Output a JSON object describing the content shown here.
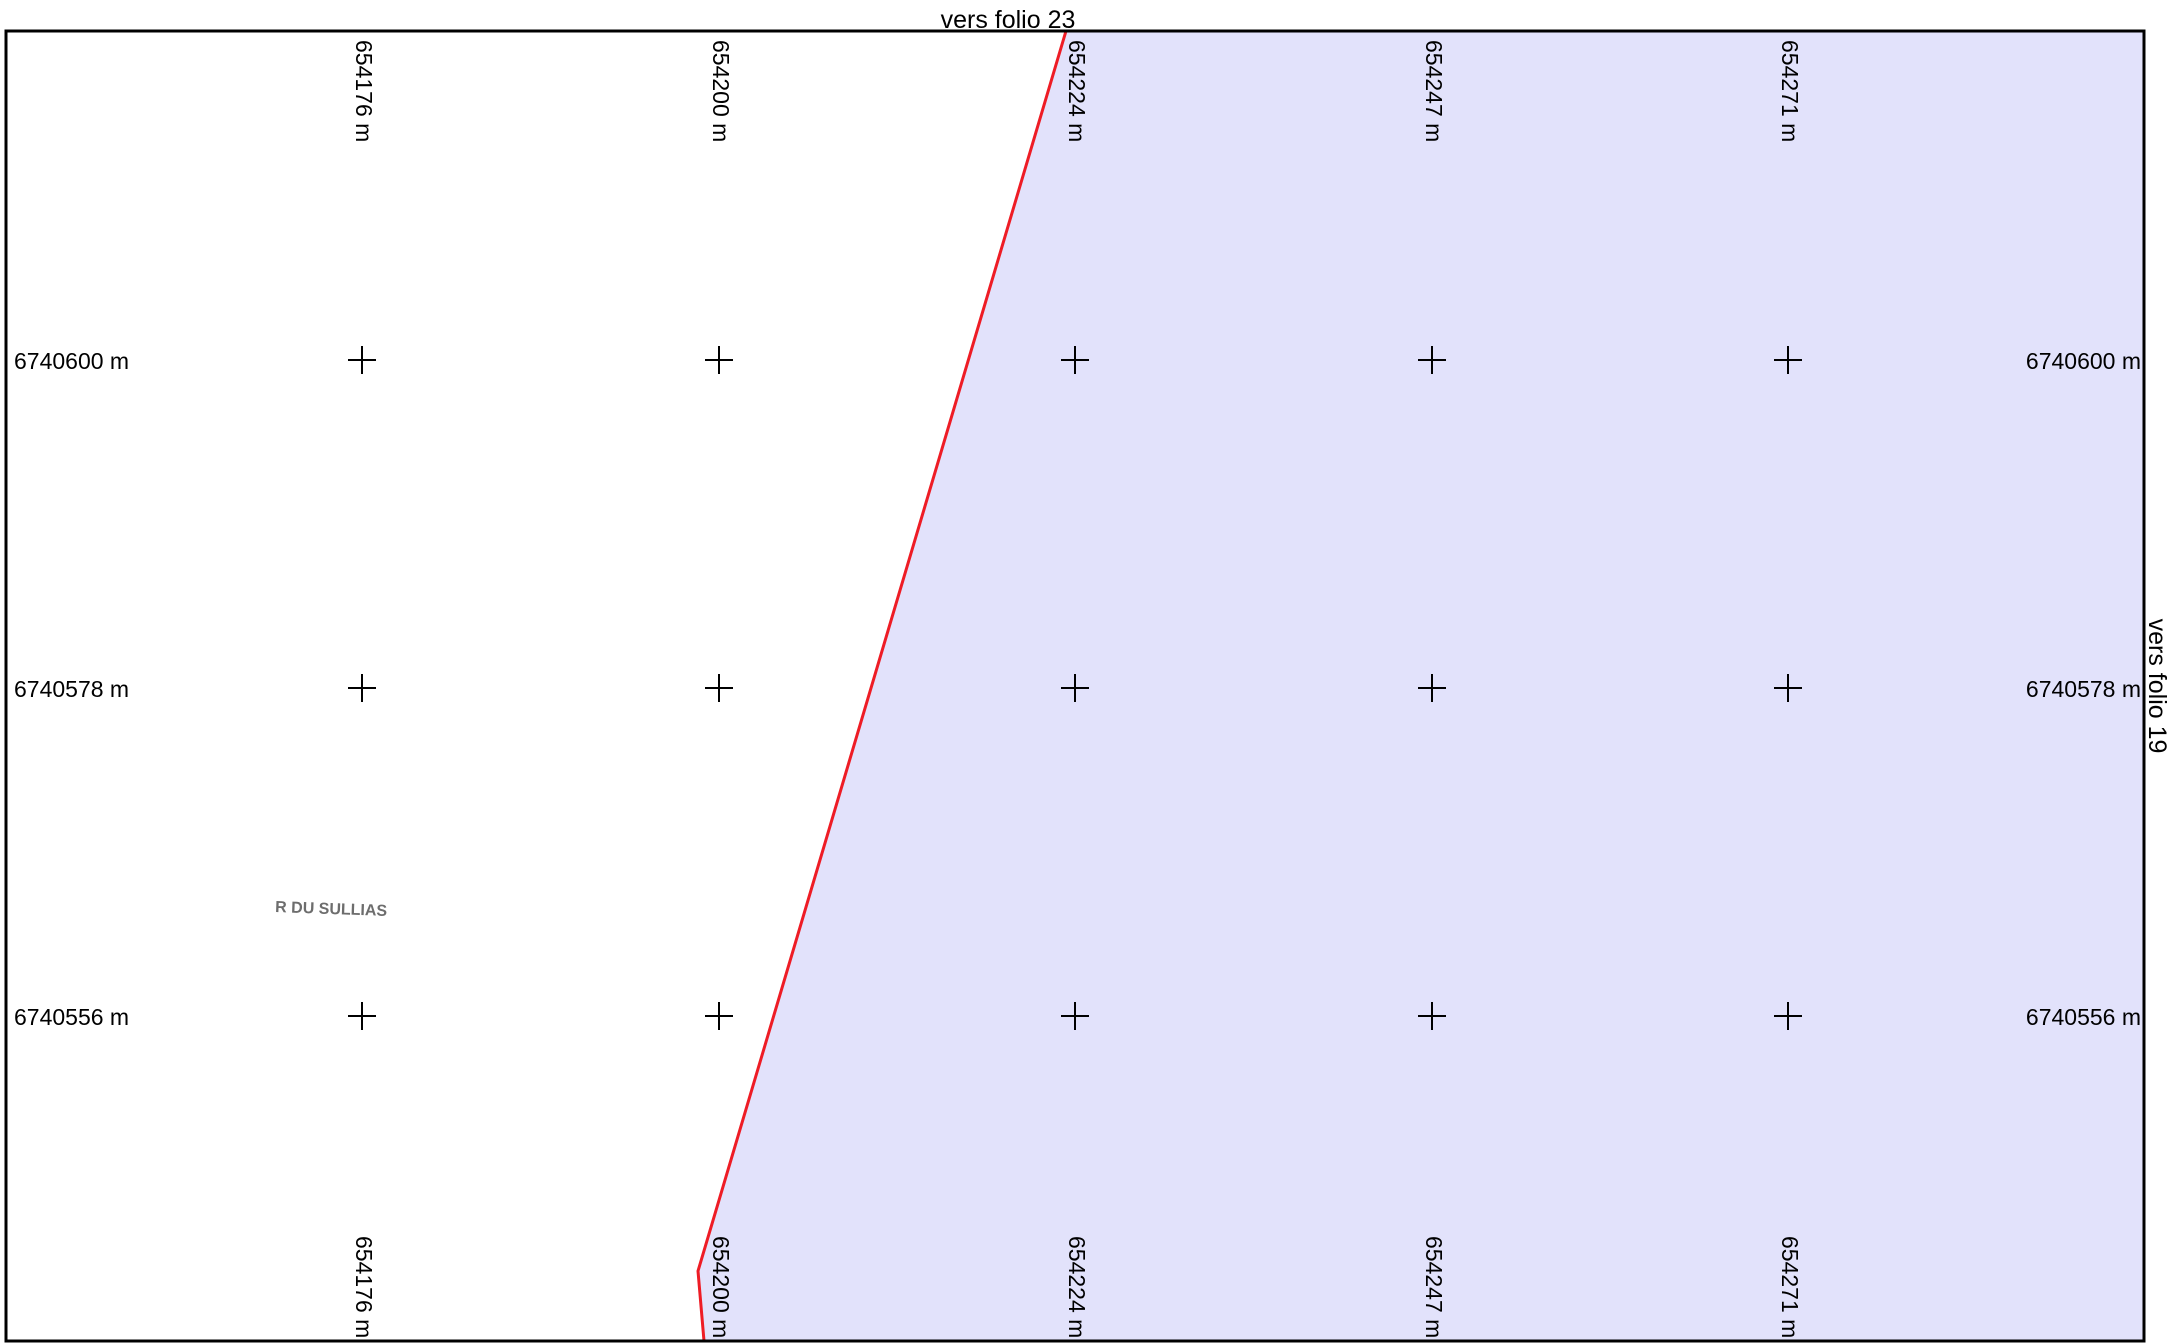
{
  "sheet": {
    "top_reference": "vers folio 23",
    "right_reference": "vers folio 19",
    "boundary_color": "#ee1c25",
    "parcel_fill_color": "#e2e2fb",
    "frame_color": "#000000"
  },
  "grid": {
    "eastings": [
      "654176 m",
      "654200 m",
      "654224 m",
      "654247 m",
      "654271 m"
    ],
    "northings": [
      "6740600 m",
      "6740578 m",
      "6740556 m"
    ],
    "cross_marker": "plus-cross-icon"
  },
  "streets": [
    {
      "name": "R DU SULLIAS"
    }
  ]
}
